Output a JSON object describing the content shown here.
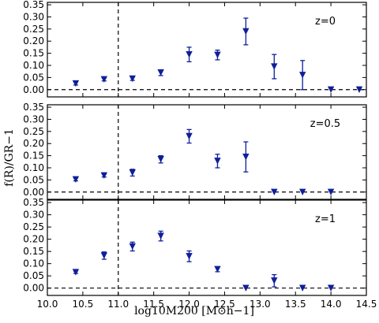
{
  "chart_data": {
    "type": "scatter",
    "title": "",
    "xlabel": "log10M200 [M⊙h−1]",
    "ylabel": "f(R)/GR−1",
    "xlim": [
      10.0,
      14.5
    ],
    "ylim": [
      -0.03,
      0.36
    ],
    "x_ticks": [
      "10.0",
      "10.5",
      "11.0",
      "11.5",
      "12.0",
      "12.5",
      "13.0",
      "13.5",
      "14.0",
      "14.5"
    ],
    "y_ticks": [
      "0.00",
      "0.05",
      "0.10",
      "0.15",
      "0.20",
      "0.25",
      "0.30",
      "0.35"
    ],
    "vertical_dashed_line_x": 11.0,
    "horizontal_dashed_line_y": 0.0,
    "marker": "down-triangle",
    "color": "#0f1f9a",
    "panels": [
      {
        "label": "z=0",
        "points": [
          {
            "x": 10.4,
            "y": 0.025,
            "err": 0.006
          },
          {
            "x": 10.8,
            "y": 0.042,
            "err": 0.006
          },
          {
            "x": 11.2,
            "y": 0.045,
            "err": 0.007
          },
          {
            "x": 11.6,
            "y": 0.07,
            "err": 0.012
          },
          {
            "x": 12.0,
            "y": 0.145,
            "err": 0.03
          },
          {
            "x": 12.4,
            "y": 0.143,
            "err": 0.02
          },
          {
            "x": 12.8,
            "y": 0.24,
            "err": 0.055
          },
          {
            "x": 13.2,
            "y": 0.095,
            "err": 0.05
          },
          {
            "x": 13.6,
            "y": 0.06,
            "err": 0.06
          },
          {
            "x": 14.0,
            "y": 0.0,
            "err": 0.0
          },
          {
            "x": 14.4,
            "y": 0.0,
            "err": 0.0
          }
        ]
      },
      {
        "label": "z=0.5",
        "points": [
          {
            "x": 10.4,
            "y": 0.052,
            "err": 0.006
          },
          {
            "x": 10.8,
            "y": 0.068,
            "err": 0.006
          },
          {
            "x": 11.2,
            "y": 0.08,
            "err": 0.014
          },
          {
            "x": 11.6,
            "y": 0.135,
            "err": 0.015
          },
          {
            "x": 12.0,
            "y": 0.23,
            "err": 0.028
          },
          {
            "x": 12.4,
            "y": 0.128,
            "err": 0.028
          },
          {
            "x": 12.8,
            "y": 0.145,
            "err": 0.062
          },
          {
            "x": 13.2,
            "y": 0.0,
            "err": 0.0
          },
          {
            "x": 13.6,
            "y": 0.0,
            "err": 0.0
          },
          {
            "x": 14.0,
            "y": 0.0,
            "err": 0.0
          }
        ]
      },
      {
        "label": "z=1",
        "points": [
          {
            "x": 10.4,
            "y": 0.065,
            "err": 0.005
          },
          {
            "x": 10.8,
            "y": 0.133,
            "err": 0.015
          },
          {
            "x": 11.2,
            "y": 0.17,
            "err": 0.018
          },
          {
            "x": 11.6,
            "y": 0.213,
            "err": 0.02
          },
          {
            "x": 12.0,
            "y": 0.13,
            "err": 0.022
          },
          {
            "x": 12.4,
            "y": 0.077,
            "err": 0.01
          },
          {
            "x": 12.8,
            "y": 0.0,
            "err": 0.0
          },
          {
            "x": 13.2,
            "y": 0.03,
            "err": 0.025
          },
          {
            "x": 13.6,
            "y": 0.0,
            "err": 0.0
          },
          {
            "x": 14.0,
            "y": 0.0,
            "err": 0.0
          }
        ]
      }
    ]
  }
}
